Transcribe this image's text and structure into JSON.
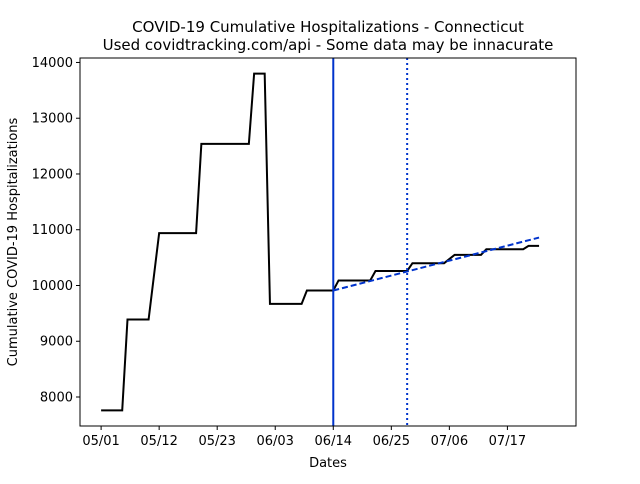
{
  "chart_data": {
    "type": "line",
    "title": "COVID-19 Cumulative Hospitalizations - Connecticut",
    "subtitle": "Used covidtracking.com/api - Some data may be innacurate",
    "xlabel": "Dates",
    "ylabel": "Cumulative COVID-19 Hospitalizations",
    "ylim": [
      7480,
      14080
    ],
    "xlim": [
      "2020-04-27",
      "2020-07-30"
    ],
    "grid": false,
    "legend": "none",
    "x_ticks": [
      {
        "date": "2020-05-01",
        "label": "05/01"
      },
      {
        "date": "2020-05-12",
        "label": "05/12"
      },
      {
        "date": "2020-05-23",
        "label": "05/23"
      },
      {
        "date": "2020-06-03",
        "label": "06/03"
      },
      {
        "date": "2020-06-14",
        "label": "06/14"
      },
      {
        "date": "2020-06-25",
        "label": "06/25"
      },
      {
        "date": "2020-07-06",
        "label": "07/06"
      },
      {
        "date": "2020-07-17",
        "label": "07/17"
      }
    ],
    "y_ticks": [
      8000,
      9000,
      10000,
      11000,
      12000,
      13000,
      14000
    ],
    "series": [
      {
        "color": "#000000",
        "style": "solid",
        "points": [
          {
            "x": "2020-05-01",
            "y": 7760
          },
          {
            "x": "2020-05-05",
            "y": 7760
          },
          {
            "x": "2020-05-06",
            "y": 9390
          },
          {
            "x": "2020-05-10",
            "y": 9390
          },
          {
            "x": "2020-05-12",
            "y": 10940
          },
          {
            "x": "2020-05-19",
            "y": 10940
          },
          {
            "x": "2020-05-20",
            "y": 12540
          },
          {
            "x": "2020-05-29",
            "y": 12540
          },
          {
            "x": "2020-05-30",
            "y": 13800
          },
          {
            "x": "2020-06-01",
            "y": 13800
          },
          {
            "x": "2020-06-02",
            "y": 9670
          },
          {
            "x": "2020-06-08",
            "y": 9670
          },
          {
            "x": "2020-06-09",
            "y": 9910
          },
          {
            "x": "2020-06-14",
            "y": 9910
          },
          {
            "x": "2020-06-15",
            "y": 10090
          },
          {
            "x": "2020-06-21",
            "y": 10090
          },
          {
            "x": "2020-06-22",
            "y": 10260
          },
          {
            "x": "2020-06-28",
            "y": 10260
          },
          {
            "x": "2020-06-29",
            "y": 10400
          },
          {
            "x": "2020-07-05",
            "y": 10400
          },
          {
            "x": "2020-07-07",
            "y": 10550
          },
          {
            "x": "2020-07-12",
            "y": 10550
          },
          {
            "x": "2020-07-13",
            "y": 10650
          },
          {
            "x": "2020-07-20",
            "y": 10650
          },
          {
            "x": "2020-07-21",
            "y": 10710
          },
          {
            "x": "2020-07-23",
            "y": 10710
          }
        ]
      },
      {
        "color": "#0033cc",
        "style": "dashed",
        "points": [
          {
            "x": "2020-06-14",
            "y": 9910
          },
          {
            "x": "2020-07-23",
            "y": 10860
          }
        ]
      }
    ],
    "vlines": [
      {
        "x": "2020-06-14",
        "color": "#0033cc",
        "style": "solid"
      },
      {
        "x": "2020-06-28",
        "color": "#0033cc",
        "style": "dotted"
      }
    ]
  }
}
